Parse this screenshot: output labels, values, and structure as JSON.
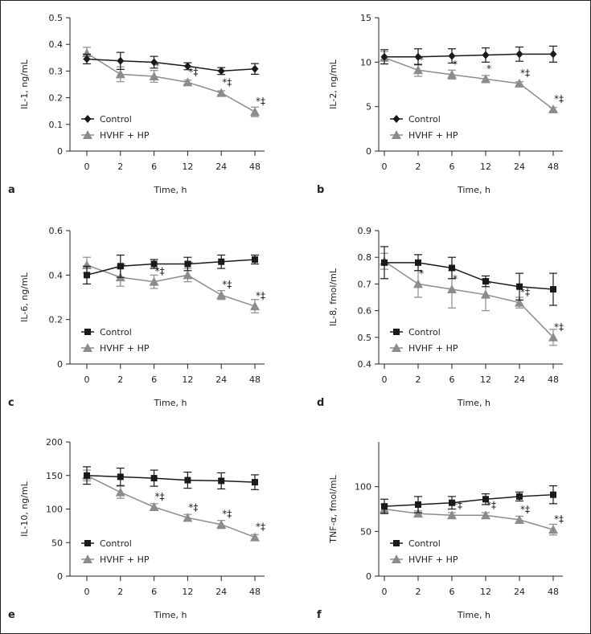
{
  "chart_data": [
    {
      "panel": "a",
      "type": "line",
      "ylabel": "IL-1, ng/mL",
      "xlabel": "Time, h",
      "ylim": [
        0,
        0.5
      ],
      "yticks": [
        "0",
        "0.1",
        "0.2",
        "0.3",
        "0.4",
        "0.5"
      ],
      "ytick_values": [
        0,
        0.1,
        0.2,
        0.3,
        0.4,
        0.5
      ],
      "categories": [
        "0",
        "2",
        "6",
        "12",
        "24",
        "48"
      ],
      "series": [
        {
          "name": "Control",
          "marker": "diamond",
          "color": "#1a1a1a",
          "values": [
            0.345,
            0.338,
            0.333,
            0.318,
            0.3,
            0.308
          ],
          "errors": [
            0.018,
            0.032,
            0.022,
            0.013,
            0.013,
            0.02
          ],
          "annotations": [
            "",
            "",
            "",
            "",
            "",
            ""
          ]
        },
        {
          "name": "HVHF + HP",
          "marker": "triangle",
          "color": "#8c8c8c",
          "values": [
            0.367,
            0.288,
            0.28,
            0.258,
            0.218,
            0.147
          ],
          "errors": [
            0.022,
            0.028,
            0.022,
            0.008,
            0.008,
            0.018
          ],
          "annotations": [
            "",
            "",
            "*",
            "*‡",
            "*‡",
            "*‡"
          ]
        }
      ]
    },
    {
      "panel": "b",
      "type": "line",
      "ylabel": "IL-2, ng/mL",
      "xlabel": "Time, h",
      "ylim": [
        0,
        15
      ],
      "yticks": [
        "0",
        "5",
        "10",
        "15"
      ],
      "ytick_values": [
        0,
        5,
        10,
        15
      ],
      "categories": [
        "0",
        "2",
        "6",
        "12",
        "24",
        "48"
      ],
      "series": [
        {
          "name": "Control",
          "marker": "diamond",
          "color": "#1a1a1a",
          "values": [
            10.6,
            10.6,
            10.7,
            10.8,
            10.9,
            10.9
          ],
          "errors": [
            0.8,
            0.9,
            0.8,
            0.8,
            0.8,
            0.9
          ],
          "annotations": [
            "",
            "",
            "",
            "",
            "",
            ""
          ]
        },
        {
          "name": "HVHF + HP",
          "marker": "triangle",
          "color": "#8c8c8c",
          "values": [
            10.5,
            9.1,
            8.6,
            8.1,
            7.6,
            4.7
          ],
          "errors": [
            0.7,
            0.7,
            0.5,
            0.4,
            0.2,
            0.2
          ],
          "annotations": [
            "",
            "*",
            "*",
            "*",
            "*‡",
            "*‡"
          ]
        }
      ]
    },
    {
      "panel": "c",
      "type": "line",
      "ylabel": "IL-6, ng/mL",
      "xlabel": "Time, h",
      "ylim": [
        0,
        0.6
      ],
      "yticks": [
        "0",
        "0.2",
        "0.4",
        "0.6"
      ],
      "ytick_values": [
        0,
        0.2,
        0.4,
        0.6
      ],
      "categories": [
        "0",
        "2",
        "6",
        "12",
        "24",
        "48"
      ],
      "series": [
        {
          "name": "Control",
          "marker": "square",
          "color": "#1a1a1a",
          "values": [
            0.4,
            0.44,
            0.45,
            0.45,
            0.46,
            0.47
          ],
          "errors": [
            0.04,
            0.05,
            0.02,
            0.03,
            0.03,
            0.02
          ],
          "annotations": [
            "",
            "",
            "",
            "",
            "",
            ""
          ]
        },
        {
          "name": "HVHF + HP",
          "marker": "triangle",
          "color": "#8c8c8c",
          "values": [
            0.445,
            0.39,
            0.37,
            0.4,
            0.31,
            0.26
          ],
          "errors": [
            0.035,
            0.04,
            0.03,
            0.03,
            0.02,
            0.03
          ],
          "annotations": [
            "",
            "*",
            "*‡",
            "*",
            "*‡",
            "*‡"
          ]
        }
      ]
    },
    {
      "panel": "d",
      "type": "line",
      "ylabel": "IL-8, fmol/mL",
      "xlabel": "Time, h",
      "ylim": [
        0.4,
        0.9
      ],
      "yticks": [
        "0.4",
        "0.5",
        "0.6",
        "0.7",
        "0.8",
        "0.9"
      ],
      "ytick_values": [
        0.4,
        0.5,
        0.6,
        0.7,
        0.8,
        0.9
      ],
      "categories": [
        "0",
        "2",
        "6",
        "12",
        "24",
        "48"
      ],
      "series": [
        {
          "name": "Control",
          "marker": "square",
          "color": "#1a1a1a",
          "values": [
            0.78,
            0.78,
            0.76,
            0.71,
            0.69,
            0.68
          ],
          "errors": [
            0.06,
            0.03,
            0.04,
            0.02,
            0.05,
            0.06
          ],
          "annotations": [
            "",
            "",
            "",
            "",
            "",
            ""
          ]
        },
        {
          "name": "HVHF + HP",
          "marker": "triangle",
          "color": "#8c8c8c",
          "values": [
            0.785,
            0.7,
            0.68,
            0.66,
            0.63,
            0.5
          ],
          "errors": [
            0.03,
            0.05,
            0.07,
            0.06,
            0.02,
            0.03
          ],
          "annotations": [
            "",
            "*",
            "*",
            "*",
            "*‡",
            "*‡"
          ]
        }
      ]
    },
    {
      "panel": "e",
      "type": "line",
      "ylabel": "IL-10, ng/mL",
      "xlabel": "Time, h",
      "ylim": [
        0,
        200
      ],
      "yticks": [
        "0",
        "50",
        "100",
        "150",
        "200"
      ],
      "ytick_values": [
        0,
        50,
        100,
        150,
        200
      ],
      "categories": [
        "0",
        "2",
        "6",
        "12",
        "24",
        "48"
      ],
      "series": [
        {
          "name": "Control",
          "marker": "square",
          "color": "#1a1a1a",
          "values": [
            150,
            148,
            146,
            143,
            142,
            140
          ],
          "errors": [
            13,
            13,
            12,
            12,
            12,
            11
          ],
          "annotations": [
            "",
            "",
            "",
            "",
            "",
            ""
          ]
        },
        {
          "name": "HVHF + HP",
          "marker": "triangle",
          "color": "#8c8c8c",
          "values": [
            150,
            125,
            103,
            87,
            77,
            58
          ],
          "errors": [
            8,
            9,
            5,
            5,
            6,
            4
          ],
          "annotations": [
            "",
            "",
            "*‡",
            "*‡",
            "*‡",
            "*‡"
          ]
        }
      ]
    },
    {
      "panel": "f",
      "type": "line",
      "ylabel": "TNF-α, fmol/mL",
      "xlabel": "Time, h",
      "ylim": [
        0,
        150
      ],
      "yticks": [
        "0",
        "50",
        "100"
      ],
      "ytick_values": [
        0,
        50,
        100
      ],
      "categories": [
        "0",
        "2",
        "6",
        "12",
        "24",
        "48"
      ],
      "series": [
        {
          "name": "Control",
          "marker": "square",
          "color": "#1a1a1a",
          "values": [
            78,
            80,
            82,
            86,
            89,
            91
          ],
          "errors": [
            8,
            9,
            7,
            6,
            5,
            10
          ],
          "annotations": [
            "",
            "",
            "",
            "",
            "",
            ""
          ]
        },
        {
          "name": "HVHF + HP",
          "marker": "triangle",
          "color": "#8c8c8c",
          "values": [
            75,
            70,
            68,
            68,
            63,
            52
          ],
          "errors": [
            5,
            3,
            3,
            3,
            4,
            6
          ],
          "annotations": [
            "",
            "",
            "*‡",
            "*‡",
            "*‡",
            "*‡"
          ]
        }
      ]
    }
  ]
}
